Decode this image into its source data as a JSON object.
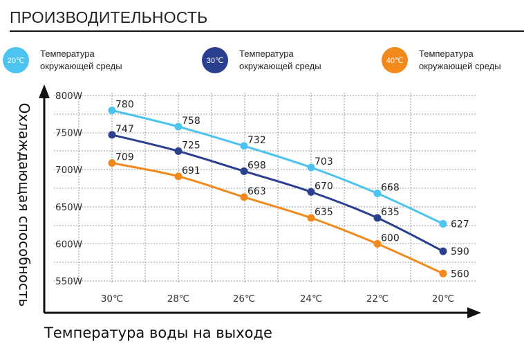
{
  "header": {
    "title": "ПРОИЗВОДИТЕЛЬНОСТЬ"
  },
  "legend": [
    {
      "badge": "20℃",
      "line1": "Температура",
      "line2": "окружающей среды",
      "color": "#4dc3ef"
    },
    {
      "badge": "30℃",
      "line1": "Температура",
      "line2": "окружающей среды",
      "color": "#2b3f8f"
    },
    {
      "badge": "40℃",
      "line1": "Температура",
      "line2": "окружающей среды",
      "color": "#f1891c"
    }
  ],
  "chart_data": {
    "type": "line",
    "title": "",
    "xlabel": "Температура воды на выходе",
    "ylabel": "Охлаждающая способность",
    "categories": [
      "30℃",
      "28℃",
      "26℃",
      "24℃",
      "22℃",
      "20℃"
    ],
    "y_ticks": [
      "800W",
      "750W",
      "700W",
      "650W",
      "600W",
      "550W"
    ],
    "ylim": [
      550,
      800
    ],
    "grid": true,
    "series": [
      {
        "name": "20℃",
        "color": "#4dc3ef",
        "values": [
          780,
          758,
          732,
          703,
          668,
          627
        ]
      },
      {
        "name": "30℃",
        "color": "#2b3f8f",
        "values": [
          747,
          725,
          698,
          670,
          635,
          590
        ]
      },
      {
        "name": "40℃",
        "color": "#f1891c",
        "values": [
          709,
          691,
          663,
          635,
          600,
          560
        ]
      }
    ]
  }
}
